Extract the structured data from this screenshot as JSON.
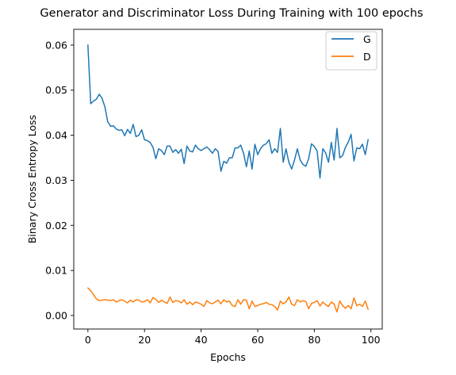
{
  "chart_data": {
    "type": "line",
    "title": "Generator and Discriminator Loss During Training with 100 epochs",
    "xlabel": "Epochs",
    "ylabel": "Binary Cross Entropy Loss",
    "xlim": [
      -5,
      104
    ],
    "ylim": [
      -0.003,
      0.0635
    ],
    "xticks": [
      0,
      20,
      40,
      60,
      80,
      100
    ],
    "xtick_labels": [
      "0",
      "20",
      "40",
      "60",
      "80",
      "100"
    ],
    "yticks": [
      0.0,
      0.01,
      0.02,
      0.03,
      0.04,
      0.05,
      0.06
    ],
    "ytick_labels": [
      "0.00",
      "0.01",
      "0.02",
      "0.03",
      "0.04",
      "0.05",
      "0.06"
    ],
    "grid": false,
    "legend_position": "top-right",
    "series": [
      {
        "name": "G",
        "color": "#1f77b4",
        "values": [
          0.06,
          0.047,
          0.0476,
          0.048,
          0.0491,
          0.0482,
          0.0463,
          0.043,
          0.042,
          0.0421,
          0.0414,
          0.0411,
          0.0412,
          0.0399,
          0.0413,
          0.0404,
          0.0424,
          0.0397,
          0.04,
          0.0412,
          0.039,
          0.0388,
          0.0384,
          0.0373,
          0.0348,
          0.037,
          0.0366,
          0.0357,
          0.0376,
          0.0376,
          0.0362,
          0.0368,
          0.036,
          0.0369,
          0.0337,
          0.0376,
          0.0365,
          0.0363,
          0.0378,
          0.037,
          0.0366,
          0.037,
          0.0374,
          0.0368,
          0.036,
          0.037,
          0.0364,
          0.032,
          0.0342,
          0.0338,
          0.035,
          0.035,
          0.0372,
          0.0372,
          0.0378,
          0.036,
          0.033,
          0.0365,
          0.0325,
          0.038,
          0.0357,
          0.037,
          0.0378,
          0.0381,
          0.039,
          0.036,
          0.037,
          0.0362,
          0.0415,
          0.034,
          0.037,
          0.034,
          0.0325,
          0.0345,
          0.037,
          0.0345,
          0.0335,
          0.0331,
          0.0348,
          0.0381,
          0.0375,
          0.0365,
          0.0305,
          0.037,
          0.0361,
          0.034,
          0.0384,
          0.0345,
          0.0415,
          0.035,
          0.0355,
          0.0373,
          0.0385,
          0.0402,
          0.0343,
          0.0372,
          0.037,
          0.038,
          0.0357,
          0.039
        ]
      },
      {
        "name": "D",
        "color": "#ff7f0e",
        "values": [
          0.0061,
          0.0055,
          0.0046,
          0.0037,
          0.0033,
          0.0034,
          0.0035,
          0.0034,
          0.0033,
          0.0035,
          0.003,
          0.0033,
          0.0035,
          0.0032,
          0.0028,
          0.0034,
          0.003,
          0.0035,
          0.0034,
          0.003,
          0.0031,
          0.0035,
          0.0028,
          0.004,
          0.0036,
          0.0029,
          0.0034,
          0.003,
          0.0027,
          0.0041,
          0.0029,
          0.0033,
          0.0032,
          0.0028,
          0.0035,
          0.0025,
          0.003,
          0.0024,
          0.003,
          0.0028,
          0.0025,
          0.002,
          0.0033,
          0.0028,
          0.0026,
          0.003,
          0.0034,
          0.0026,
          0.0035,
          0.003,
          0.0032,
          0.0022,
          0.002,
          0.0035,
          0.0025,
          0.0035,
          0.0034,
          0.0015,
          0.0032,
          0.002,
          0.0022,
          0.0025,
          0.0026,
          0.0029,
          0.0025,
          0.0024,
          0.002,
          0.0012,
          0.0032,
          0.0026,
          0.003,
          0.0041,
          0.0025,
          0.0022,
          0.0035,
          0.003,
          0.0033,
          0.0031,
          0.0015,
          0.0027,
          0.0029,
          0.0033,
          0.0021,
          0.003,
          0.0024,
          0.002,
          0.003,
          0.0025,
          0.0008,
          0.0032,
          0.0022,
          0.0016,
          0.0022,
          0.0015,
          0.0039,
          0.0022,
          0.0025,
          0.002,
          0.0032,
          0.0014
        ]
      }
    ]
  }
}
